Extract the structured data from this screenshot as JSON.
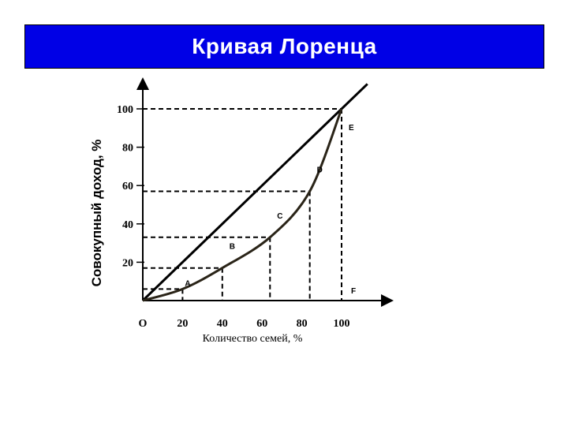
{
  "slide": {
    "title": "Кривая Лоренца"
  },
  "colors": {
    "title_bg": "#0000e6",
    "title_text": "#ffffff",
    "lines": "#000000",
    "curve": "#2a2418"
  },
  "chart_data": {
    "type": "line",
    "title": "Кривая Лоренца",
    "xlabel": "Количество семей, %",
    "ylabel": "Совокупный доход, %",
    "origin_label": "O",
    "xlim": [
      0,
      100
    ],
    "ylim": [
      0,
      100
    ],
    "x_ticks": [
      20,
      40,
      60,
      80,
      100
    ],
    "y_ticks": [
      20,
      40,
      60,
      80,
      100
    ],
    "equality_line": {
      "x": [
        0,
        100
      ],
      "y": [
        0,
        100
      ]
    },
    "lorenz_curve": {
      "x": [
        0,
        20,
        40,
        64,
        84,
        100
      ],
      "y": [
        0,
        6,
        17,
        33,
        57,
        100
      ]
    },
    "points": [
      {
        "label": "A",
        "x": 20,
        "y": 6
      },
      {
        "label": "B",
        "x": 40,
        "y": 17
      },
      {
        "label": "C",
        "x": 64,
        "y": 33
      },
      {
        "label": "D",
        "x": 84,
        "y": 57
      },
      {
        "label": "E",
        "x": 100,
        "y": 100
      },
      {
        "label": "F",
        "x": 100,
        "y": 0
      }
    ],
    "grid": false,
    "legend": "none"
  }
}
